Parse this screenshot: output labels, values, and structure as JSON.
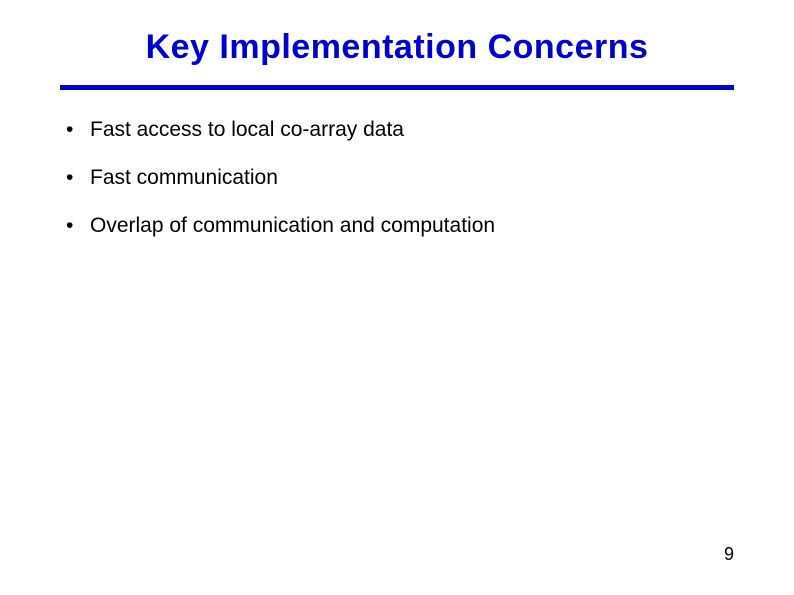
{
  "slide": {
    "title": "Key Implementation Concerns",
    "title_color": "#0000cc",
    "title_fontsize": 34,
    "title_fontweight": "bold",
    "divider_color": "#0000cc",
    "divider_thickness": 5,
    "background_color": "#ffffff",
    "bullets": [
      {
        "marker": "•",
        "text": "Fast access to local co-array data"
      },
      {
        "marker": "•",
        "text": "Fast communication"
      },
      {
        "marker": "•",
        "text": "Overlap of communication and computation"
      }
    ],
    "bullet_fontsize": 21,
    "bullet_color": "#000000",
    "page_number": "9",
    "page_number_fontsize": 18,
    "page_number_color": "#000000"
  }
}
